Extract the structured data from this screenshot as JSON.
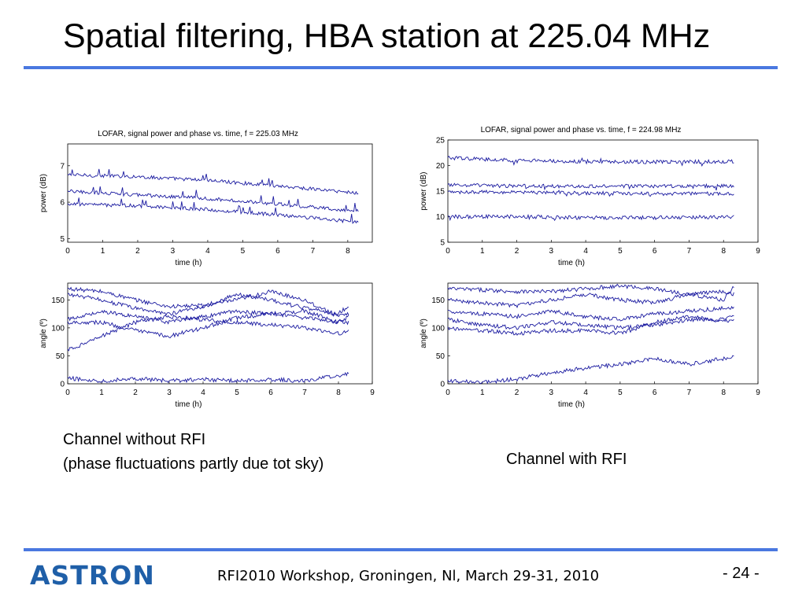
{
  "slide": {
    "title": "Spatial filtering, HBA station at 225.04 MHz",
    "caption_left_1": "Channel without RFI",
    "caption_left_2": "(phase fluctuations partly due tot sky)",
    "caption_right": "Channel with RFI",
    "logo_text": "ASTRON",
    "footer": "RFI2010 Workshop, Groningen, Nl, March 29-31, 2010",
    "page_number": "- 24 -",
    "accent_color": "#4a78e0",
    "trace_color": "#1a1aa0",
    "logo_color": "#1f5fa8"
  },
  "chart_data": [
    {
      "type": "line",
      "title": "LOFAR, signal power and phase vs. time, f = 225.03 MHz",
      "xlabel": "time (h)",
      "ylabel": "power (dB)",
      "xlim": [
        0,
        8.7
      ],
      "ylim": [
        4.9,
        7.6
      ],
      "xticks": [
        0,
        1,
        2,
        3,
        4,
        5,
        6,
        7,
        8
      ],
      "yticks": [
        5,
        6,
        7
      ],
      "series": [
        {
          "x": [
            0,
            2,
            4,
            6,
            8.3
          ],
          "y": [
            6.75,
            6.7,
            6.6,
            6.45,
            6.25
          ]
        },
        {
          "x": [
            0,
            2,
            4,
            6,
            8.3
          ],
          "y": [
            6.3,
            6.2,
            6.1,
            5.95,
            5.75
          ]
        },
        {
          "x": [
            0,
            2,
            4,
            6,
            8.3
          ],
          "y": [
            5.95,
            5.9,
            5.8,
            5.65,
            5.45
          ]
        }
      ]
    },
    {
      "type": "line",
      "title": "LOFAR, signal power and phase vs. time, f = 224.98 MHz",
      "xlabel": "time (h)",
      "ylabel": "power (dB)",
      "xlim": [
        0,
        9
      ],
      "ylim": [
        5,
        25
      ],
      "xticks": [
        0,
        1,
        2,
        3,
        4,
        5,
        6,
        7,
        8,
        9
      ],
      "yticks": [
        5,
        10,
        15,
        20,
        25
      ],
      "series": [
        {
          "x": [
            0,
            2,
            4,
            6,
            8.3
          ],
          "y": [
            21.5,
            21,
            20.8,
            20.7,
            20.8
          ]
        },
        {
          "x": [
            0,
            2,
            4,
            6,
            8.3
          ],
          "y": [
            16.2,
            16,
            16,
            16,
            16
          ]
        },
        {
          "x": [
            0,
            2,
            4,
            6,
            8.3
          ],
          "y": [
            14.8,
            14.8,
            14.6,
            14.5,
            14.5
          ]
        },
        {
          "x": [
            0,
            2,
            4,
            6,
            8.3
          ],
          "y": [
            10,
            10,
            9.8,
            9.8,
            10
          ]
        }
      ]
    },
    {
      "type": "line",
      "title": "",
      "xlabel": "time (h)",
      "ylabel": "angle (º)",
      "xlim": [
        0,
        9
      ],
      "ylim": [
        0,
        180
      ],
      "xticks": [
        0,
        1,
        2,
        3,
        4,
        5,
        6,
        7,
        8,
        9
      ],
      "yticks": [
        0,
        50,
        100,
        150
      ],
      "series": [
        {
          "x": [
            0,
            1,
            2,
            3,
            4,
            5,
            6,
            7,
            8,
            8.3
          ],
          "y": [
            170,
            165,
            150,
            138,
            140,
            150,
            165,
            150,
            120,
            125
          ]
        },
        {
          "x": [
            0,
            1,
            2,
            3,
            4,
            5,
            6,
            7,
            8,
            8.3
          ],
          "y": [
            160,
            150,
            135,
            125,
            138,
            160,
            150,
            135,
            125,
            140
          ]
        },
        {
          "x": [
            0,
            1,
            2,
            3,
            4,
            5,
            6,
            7,
            8,
            8.3
          ],
          "y": [
            115,
            130,
            120,
            110,
            120,
            130,
            125,
            118,
            110,
            120
          ]
        },
        {
          "x": [
            0,
            1,
            2,
            3,
            4,
            5,
            6,
            7,
            8,
            8.3
          ],
          "y": [
            110,
            110,
            95,
            85,
            100,
            118,
            125,
            130,
            110,
            110
          ]
        },
        {
          "x": [
            0,
            1,
            2,
            3,
            4,
            5,
            6,
            7,
            8,
            8.3
          ],
          "y": [
            60,
            85,
            110,
            120,
            115,
            110,
            105,
            100,
            90,
            95
          ]
        },
        {
          "x": [
            0,
            1,
            2,
            3,
            4,
            5,
            6,
            7,
            8,
            8.3
          ],
          "y": [
            10,
            5,
            10,
            5,
            8,
            5,
            8,
            5,
            15,
            18
          ]
        }
      ]
    },
    {
      "type": "line",
      "title": "",
      "xlabel": "time (h)",
      "ylabel": "angle (º)",
      "xlim": [
        0,
        9
      ],
      "ylim": [
        0,
        180
      ],
      "xticks": [
        0,
        1,
        2,
        3,
        4,
        5,
        6,
        7,
        8,
        9
      ],
      "yticks": [
        0,
        50,
        100,
        150
      ],
      "series": [
        {
          "x": [
            0,
            1,
            2,
            3,
            4,
            5,
            6,
            7,
            8,
            8.3
          ],
          "y": [
            170,
            168,
            165,
            165,
            170,
            175,
            170,
            160,
            150,
            175
          ]
        },
        {
          "x": [
            0,
            1,
            2,
            3,
            4,
            5,
            6,
            7,
            8,
            8.3
          ],
          "y": [
            150,
            145,
            140,
            150,
            160,
            150,
            145,
            160,
            165,
            160
          ]
        },
        {
          "x": [
            0,
            1,
            2,
            3,
            4,
            5,
            6,
            7,
            8,
            8.3
          ],
          "y": [
            130,
            125,
            120,
            130,
            120,
            115,
            125,
            130,
            135,
            135
          ]
        },
        {
          "x": [
            0,
            1,
            2,
            3,
            4,
            5,
            6,
            7,
            8,
            8.3
          ],
          "y": [
            115,
            105,
            100,
            110,
            105,
            100,
            105,
            115,
            115,
            120
          ]
        },
        {
          "x": [
            0,
            1,
            2,
            3,
            4,
            5,
            6,
            7,
            8,
            8.3
          ],
          "y": [
            100,
            95,
            90,
            95,
            95,
            90,
            110,
            120,
            112,
            115
          ]
        },
        {
          "x": [
            0,
            1,
            2,
            3,
            4,
            5,
            6,
            7,
            8,
            8.3
          ],
          "y": [
            5,
            3,
            8,
            20,
            28,
            35,
            45,
            35,
            45,
            50
          ]
        }
      ]
    }
  ]
}
